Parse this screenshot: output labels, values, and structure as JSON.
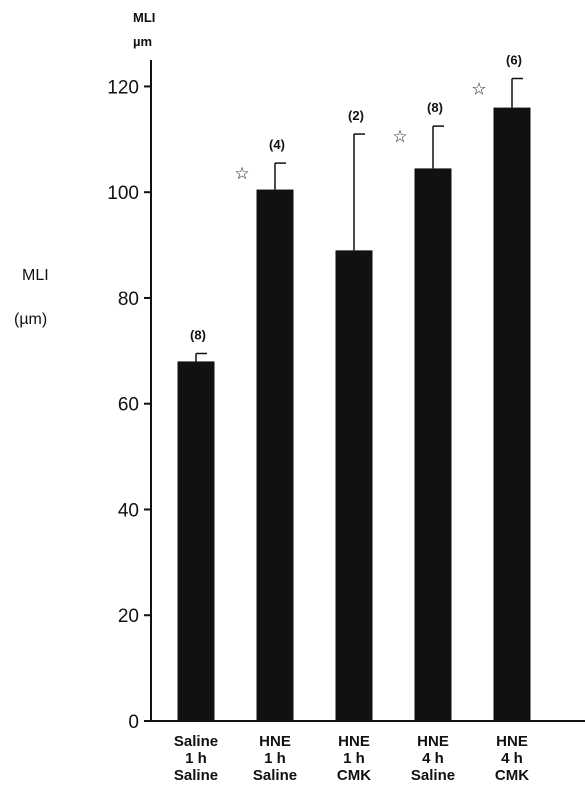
{
  "chart_data": {
    "type": "bar",
    "categories": [
      [
        "Saline",
        "1 h",
        "Saline"
      ],
      [
        "HNE",
        "1 h",
        "Saline"
      ],
      [
        "HNE",
        "1 h",
        "CMK"
      ],
      [
        "HNE",
        "4 h",
        "Saline"
      ],
      [
        "HNE",
        "4 h",
        "CMK"
      ]
    ],
    "values": [
      68,
      100.5,
      89,
      104.5,
      116
    ],
    "errors": [
      1.5,
      5,
      22,
      8,
      5.5
    ],
    "n_labels": [
      "(8)",
      "(4)",
      "(2)",
      "(8)",
      "(6)"
    ],
    "significant": [
      false,
      true,
      false,
      true,
      true
    ],
    "significance_marker": "☆",
    "ylim": [
      0,
      125
    ],
    "yticks": [
      0,
      20,
      40,
      60,
      80,
      100,
      120
    ],
    "ylabel_top": [
      "MLI",
      "µm"
    ],
    "ylabel_side": [
      "MLI",
      "(µm)"
    ],
    "bar_color": "#111111",
    "grid": false
  }
}
